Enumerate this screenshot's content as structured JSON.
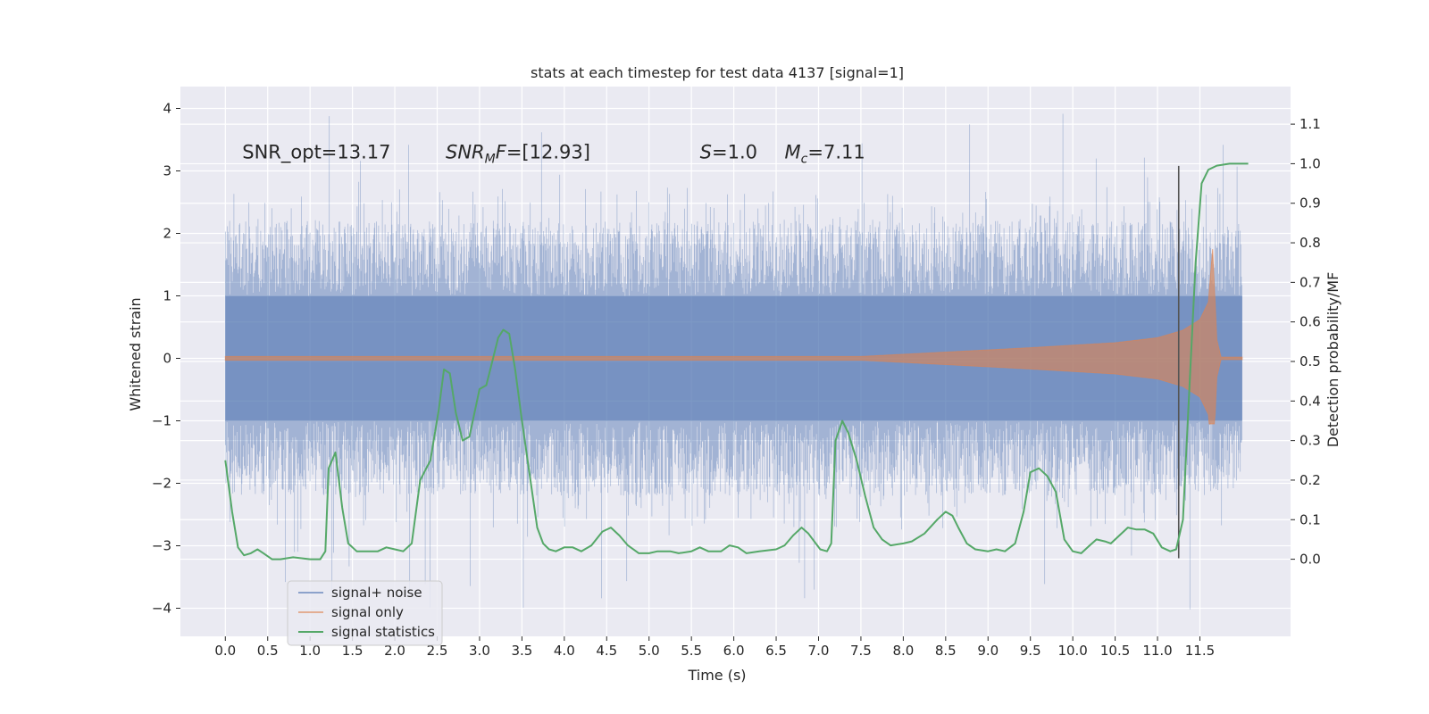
{
  "chart_data": {
    "type": "line",
    "title": "stats at each timestep for test data 4137 [signal=1]",
    "xlabel": "Time (s)",
    "ylabel": "Whitened strain",
    "y2label": "Detection probability/MF",
    "xlim": [
      -0.53,
      12.57
    ],
    "ylim": [
      -4.45,
      4.35
    ],
    "y2lim": [
      -0.195,
      1.195
    ],
    "x_ticks": [
      0.0,
      0.5,
      1.0,
      1.5,
      2.0,
      2.5,
      3.0,
      3.5,
      4.0,
      4.5,
      5.0,
      5.5,
      6.0,
      6.5,
      7.0,
      7.5,
      8.0,
      8.5,
      9.0,
      9.5,
      10.0,
      10.5,
      11.0,
      11.5
    ],
    "x_tick_labels": [
      "0.0",
      "0.5",
      "1.0",
      "1.5",
      "2.0",
      "2.5",
      "3.0",
      "3.5",
      "4.0",
      "4.5",
      "5.0",
      "5.5",
      "6.0",
      "6.5",
      "7.0",
      "7.5",
      "8.0",
      "8.5",
      "9.0",
      "9.5",
      "10.0",
      "10.5",
      "11.0",
      "11.5"
    ],
    "y_ticks": [
      4,
      3,
      2,
      1,
      0,
      -1,
      -2,
      -3,
      -4
    ],
    "y_tick_labels": [
      "4",
      "3",
      "2",
      "1",
      "0",
      "−1",
      "−2",
      "−3",
      "−4"
    ],
    "y2_ticks": [
      1.1,
      1.0,
      0.9,
      0.8,
      0.7,
      0.6,
      0.5,
      0.4,
      0.3,
      0.2,
      0.1,
      0.0
    ],
    "y2_tick_labels": [
      "1.1",
      "1.0",
      "0.9",
      "0.8",
      "0.7",
      "0.6",
      "0.5",
      "0.4",
      "0.3",
      "0.2",
      "0.1",
      "0.0"
    ],
    "grid": true,
    "legend_position": "lower-left",
    "annotations": [
      {
        "x": 0.2,
        "y": 3.2,
        "parts": [
          {
            "t": "SNR_opt=13.17",
            "s": "normal"
          }
        ]
      },
      {
        "x": 2.6,
        "y": 3.2,
        "parts": [
          {
            "t": "SNR",
            "s": "italic"
          },
          {
            "t": "M",
            "s": "sub"
          },
          {
            "t": "F",
            "s": "italic"
          },
          {
            "t": "=[12.93]",
            "s": "normal"
          }
        ]
      },
      {
        "x": 5.6,
        "y": 3.2,
        "parts": [
          {
            "t": "S",
            "s": "italic"
          },
          {
            "t": "=1.0",
            "s": "normal"
          }
        ]
      },
      {
        "x": 6.6,
        "y": 3.2,
        "parts": [
          {
            "t": "M",
            "s": "italic"
          },
          {
            "t": "c",
            "s": "sub"
          },
          {
            "t": "=7.11",
            "s": "normal"
          }
        ]
      }
    ],
    "detection_time": 11.25,
    "detection_line_range": [
      -3.2,
      3.08
    ],
    "series": [
      {
        "name": "signal+ noise",
        "color": "#4c72b0",
        "kind": "noise",
        "x_range": [
          0.0,
          12.0
        ],
        "envelope": {
          "core_low": -1.0,
          "core_high": 1.0,
          "typical_low": -2.2,
          "typical_high": 2.2,
          "extreme_low": -4.05,
          "extreme_high": 3.95
        }
      },
      {
        "name": "signal only",
        "color": "#dd8452",
        "kind": "chirp",
        "x_range": [
          0.0,
          12.0
        ],
        "amplitude_knots": [
          [
            0.0,
            0.03
          ],
          [
            7.5,
            0.03
          ],
          [
            8.5,
            0.1
          ],
          [
            9.5,
            0.17
          ],
          [
            10.5,
            0.25
          ],
          [
            11.0,
            0.33
          ],
          [
            11.3,
            0.45
          ],
          [
            11.5,
            0.62
          ],
          [
            11.6,
            0.9
          ],
          [
            11.65,
            1.75
          ],
          [
            11.7,
            0.3
          ],
          [
            11.75,
            0.02
          ],
          [
            12.0,
            0.02
          ]
        ]
      },
      {
        "name": "signal statistics",
        "color": "#55a868",
        "kind": "line",
        "axis": "right",
        "points": [
          [
            0.0,
            0.25
          ],
          [
            0.08,
            0.12
          ],
          [
            0.15,
            0.03
          ],
          [
            0.22,
            0.01
          ],
          [
            0.3,
            0.015
          ],
          [
            0.38,
            0.025
          ],
          [
            0.45,
            0.015
          ],
          [
            0.55,
            0.0
          ],
          [
            0.65,
            0.0
          ],
          [
            0.8,
            0.005
          ],
          [
            1.0,
            0.0
          ],
          [
            1.12,
            0.0
          ],
          [
            1.18,
            0.02
          ],
          [
            1.22,
            0.23
          ],
          [
            1.3,
            0.27
          ],
          [
            1.38,
            0.13
          ],
          [
            1.45,
            0.04
          ],
          [
            1.55,
            0.02
          ],
          [
            1.65,
            0.02
          ],
          [
            1.8,
            0.02
          ],
          [
            1.9,
            0.03
          ],
          [
            2.0,
            0.025
          ],
          [
            2.1,
            0.02
          ],
          [
            2.2,
            0.04
          ],
          [
            2.3,
            0.2
          ],
          [
            2.42,
            0.25
          ],
          [
            2.52,
            0.38
          ],
          [
            2.58,
            0.48
          ],
          [
            2.65,
            0.47
          ],
          [
            2.72,
            0.37
          ],
          [
            2.8,
            0.3
          ],
          [
            2.88,
            0.31
          ],
          [
            2.95,
            0.38
          ],
          [
            3.0,
            0.43
          ],
          [
            3.08,
            0.44
          ],
          [
            3.15,
            0.5
          ],
          [
            3.22,
            0.56
          ],
          [
            3.28,
            0.58
          ],
          [
            3.35,
            0.57
          ],
          [
            3.42,
            0.48
          ],
          [
            3.5,
            0.35
          ],
          [
            3.6,
            0.2
          ],
          [
            3.68,
            0.08
          ],
          [
            3.75,
            0.04
          ],
          [
            3.82,
            0.025
          ],
          [
            3.9,
            0.02
          ],
          [
            4.0,
            0.03
          ],
          [
            4.1,
            0.03
          ],
          [
            4.2,
            0.02
          ],
          [
            4.32,
            0.035
          ],
          [
            4.45,
            0.07
          ],
          [
            4.55,
            0.08
          ],
          [
            4.65,
            0.06
          ],
          [
            4.75,
            0.035
          ],
          [
            4.88,
            0.015
          ],
          [
            5.0,
            0.015
          ],
          [
            5.1,
            0.02
          ],
          [
            5.25,
            0.02
          ],
          [
            5.35,
            0.015
          ],
          [
            5.5,
            0.02
          ],
          [
            5.6,
            0.03
          ],
          [
            5.7,
            0.02
          ],
          [
            5.85,
            0.02
          ],
          [
            5.95,
            0.035
          ],
          [
            6.05,
            0.03
          ],
          [
            6.15,
            0.015
          ],
          [
            6.3,
            0.02
          ],
          [
            6.5,
            0.025
          ],
          [
            6.6,
            0.035
          ],
          [
            6.7,
            0.06
          ],
          [
            6.8,
            0.08
          ],
          [
            6.88,
            0.065
          ],
          [
            6.95,
            0.045
          ],
          [
            7.02,
            0.025
          ],
          [
            7.1,
            0.02
          ],
          [
            7.15,
            0.04
          ],
          [
            7.2,
            0.3
          ],
          [
            7.28,
            0.35
          ],
          [
            7.35,
            0.32
          ],
          [
            7.45,
            0.25
          ],
          [
            7.55,
            0.16
          ],
          [
            7.65,
            0.08
          ],
          [
            7.75,
            0.05
          ],
          [
            7.85,
            0.035
          ],
          [
            8.0,
            0.04
          ],
          [
            8.1,
            0.045
          ],
          [
            8.25,
            0.065
          ],
          [
            8.4,
            0.1
          ],
          [
            8.5,
            0.12
          ],
          [
            8.58,
            0.11
          ],
          [
            8.65,
            0.08
          ],
          [
            8.75,
            0.04
          ],
          [
            8.85,
            0.025
          ],
          [
            9.0,
            0.02
          ],
          [
            9.1,
            0.025
          ],
          [
            9.2,
            0.02
          ],
          [
            9.32,
            0.04
          ],
          [
            9.42,
            0.12
          ],
          [
            9.5,
            0.22
          ],
          [
            9.6,
            0.23
          ],
          [
            9.7,
            0.21
          ],
          [
            9.8,
            0.17
          ],
          [
            9.9,
            0.05
          ],
          [
            10.0,
            0.02
          ],
          [
            10.1,
            0.015
          ],
          [
            10.2,
            0.035
          ],
          [
            10.28,
            0.05
          ],
          [
            10.38,
            0.045
          ],
          [
            10.45,
            0.04
          ],
          [
            10.55,
            0.06
          ],
          [
            10.65,
            0.08
          ],
          [
            10.75,
            0.075
          ],
          [
            10.85,
            0.075
          ],
          [
            10.95,
            0.065
          ],
          [
            11.05,
            0.03
          ],
          [
            11.15,
            0.02
          ],
          [
            11.22,
            0.025
          ],
          [
            11.3,
            0.1
          ],
          [
            11.38,
            0.45
          ],
          [
            11.45,
            0.75
          ],
          [
            11.52,
            0.95
          ],
          [
            11.6,
            0.985
          ],
          [
            11.7,
            0.995
          ],
          [
            11.85,
            1.0
          ],
          [
            12.0,
            1.0
          ],
          [
            12.07,
            1.0
          ]
        ]
      }
    ]
  }
}
